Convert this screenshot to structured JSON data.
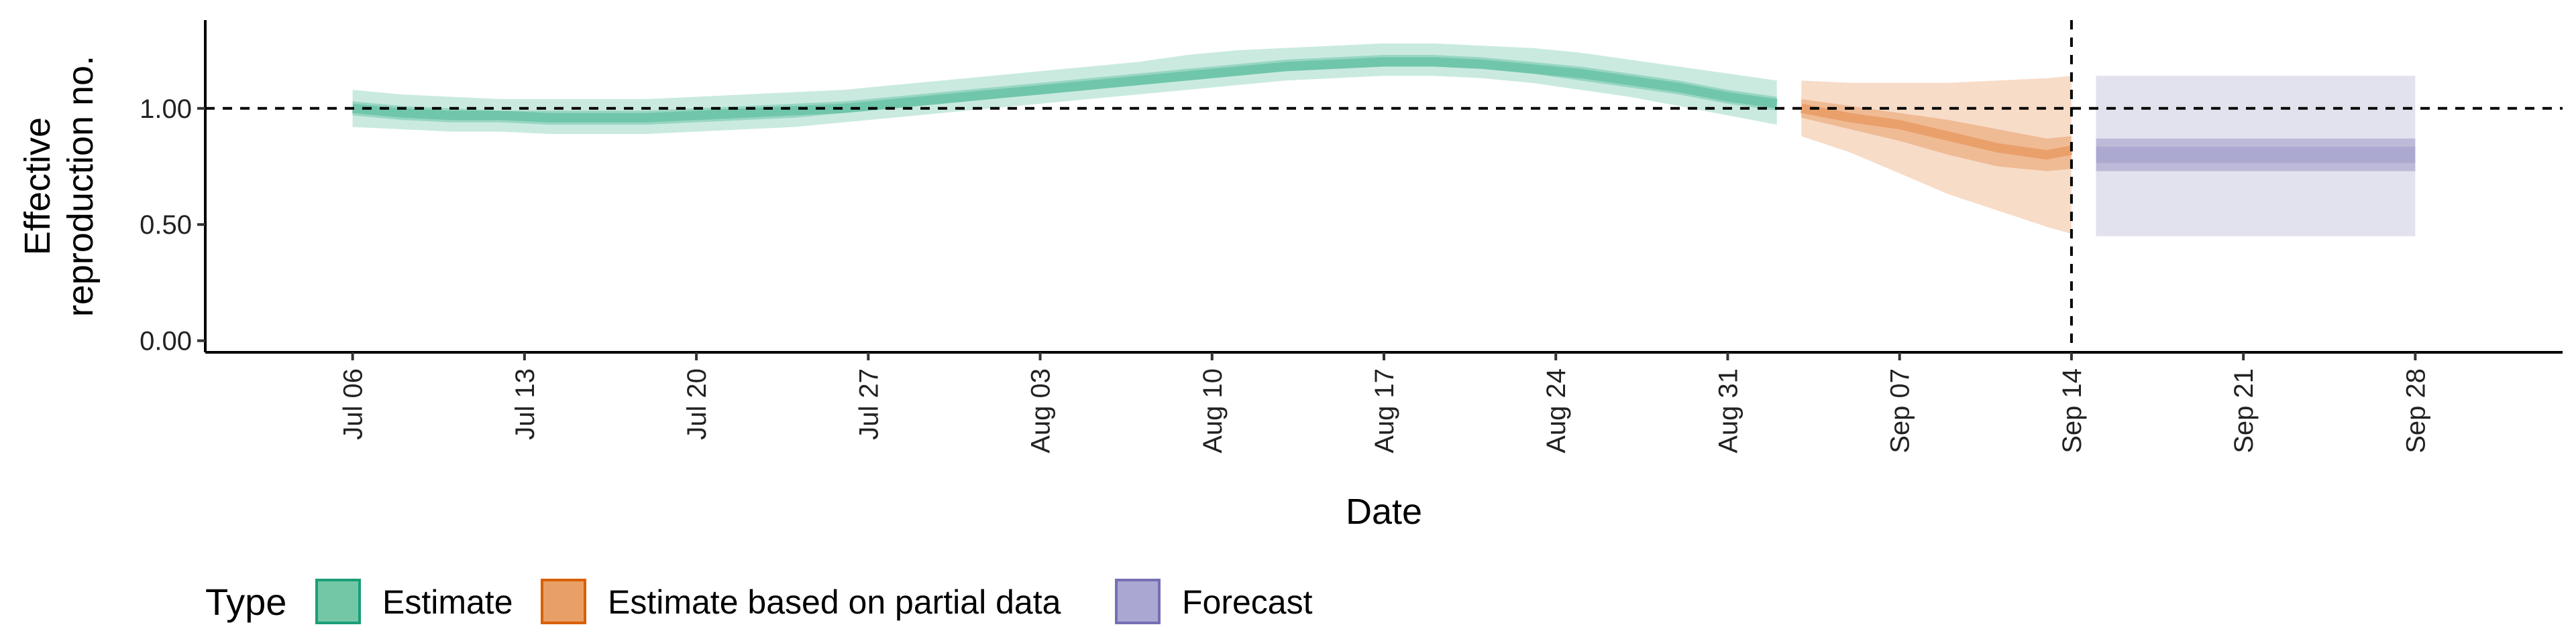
{
  "chart_data": {
    "type": "area",
    "title": "",
    "xlabel": "Date",
    "ylabel": [
      "Effective",
      "reproduction no."
    ],
    "xlim": [
      "2020-06-30",
      "2020-10-04"
    ],
    "ylim": [
      -0.05,
      1.38
    ],
    "y_ticks": [
      0.0,
      0.5,
      1.0
    ],
    "y_tick_labels": [
      "0.00",
      "0.50",
      "1.00"
    ],
    "x_ticks": [
      "2020-07-06",
      "2020-07-13",
      "2020-07-20",
      "2020-07-27",
      "2020-08-03",
      "2020-08-10",
      "2020-08-17",
      "2020-08-24",
      "2020-08-31",
      "2020-09-07",
      "2020-09-14",
      "2020-09-21",
      "2020-09-28"
    ],
    "x_tick_labels": [
      "Jul 06",
      "Jul 13",
      "Jul 20",
      "Jul 27",
      "Aug 03",
      "Aug 10",
      "Aug 17",
      "Aug 24",
      "Aug 31",
      "Sep 07",
      "Sep 14",
      "Sep 21",
      "Sep 28"
    ],
    "reference_lines": {
      "hline_y": 1.0,
      "vline_x": "2020-09-14",
      "style": "dashed"
    },
    "grid": false,
    "legend": {
      "title": "Type",
      "position": "bottom-left",
      "entries": [
        "Estimate",
        "Estimate based on partial data",
        "Forecast"
      ]
    },
    "series": [
      {
        "name": "Estimate",
        "color": "#1b9e77",
        "fill": "#66c2a5",
        "x": [
          "2020-07-06",
          "2020-07-08",
          "2020-07-10",
          "2020-07-12",
          "2020-07-14",
          "2020-07-16",
          "2020-07-18",
          "2020-07-20",
          "2020-07-22",
          "2020-07-24",
          "2020-07-26",
          "2020-07-28",
          "2020-07-30",
          "2020-08-01",
          "2020-08-03",
          "2020-08-05",
          "2020-08-07",
          "2020-08-09",
          "2020-08-11",
          "2020-08-13",
          "2020-08-15",
          "2020-08-17",
          "2020-08-19",
          "2020-08-21",
          "2020-08-23",
          "2020-08-25",
          "2020-08-27",
          "2020-08-29",
          "2020-08-31",
          "2020-09-02"
        ],
        "lower_90": [
          0.92,
          0.91,
          0.9,
          0.9,
          0.89,
          0.89,
          0.89,
          0.9,
          0.91,
          0.92,
          0.94,
          0.96,
          0.98,
          1.0,
          1.02,
          1.04,
          1.06,
          1.08,
          1.1,
          1.12,
          1.13,
          1.14,
          1.14,
          1.13,
          1.11,
          1.08,
          1.05,
          1.01,
          0.97,
          0.93
        ],
        "lower_50": [
          0.97,
          0.95,
          0.94,
          0.94,
          0.93,
          0.93,
          0.93,
          0.94,
          0.95,
          0.96,
          0.98,
          1.0,
          1.02,
          1.04,
          1.06,
          1.08,
          1.1,
          1.12,
          1.14,
          1.16,
          1.17,
          1.18,
          1.18,
          1.17,
          1.15,
          1.12,
          1.09,
          1.06,
          1.02,
          0.99
        ],
        "median": [
          1.0,
          0.98,
          0.97,
          0.97,
          0.96,
          0.96,
          0.96,
          0.97,
          0.98,
          0.99,
          1.0,
          1.02,
          1.04,
          1.06,
          1.08,
          1.1,
          1.12,
          1.14,
          1.16,
          1.18,
          1.19,
          1.2,
          1.2,
          1.19,
          1.17,
          1.15,
          1.12,
          1.09,
          1.05,
          1.02
        ],
        "upper_50": [
          1.03,
          1.01,
          1.0,
          0.99,
          0.99,
          0.99,
          0.99,
          1.0,
          1.01,
          1.02,
          1.03,
          1.05,
          1.07,
          1.09,
          1.11,
          1.13,
          1.15,
          1.17,
          1.19,
          1.21,
          1.22,
          1.23,
          1.23,
          1.22,
          1.2,
          1.18,
          1.15,
          1.12,
          1.08,
          1.05
        ],
        "upper_90": [
          1.08,
          1.06,
          1.05,
          1.04,
          1.04,
          1.04,
          1.04,
          1.05,
          1.06,
          1.07,
          1.08,
          1.1,
          1.12,
          1.14,
          1.16,
          1.18,
          1.2,
          1.23,
          1.25,
          1.26,
          1.27,
          1.28,
          1.28,
          1.27,
          1.26,
          1.24,
          1.21,
          1.18,
          1.15,
          1.12
        ]
      },
      {
        "name": "Estimate based on partial data",
        "color": "#d95f02",
        "fill": "#e89a60",
        "x": [
          "2020-09-03",
          "2020-09-05",
          "2020-09-07",
          "2020-09-09",
          "2020-09-11",
          "2020-09-13",
          "2020-09-14"
        ],
        "lower_90": [
          0.88,
          0.81,
          0.72,
          0.63,
          0.56,
          0.49,
          0.46
        ],
        "lower_50": [
          0.96,
          0.91,
          0.86,
          0.8,
          0.75,
          0.73,
          0.74
        ],
        "median": [
          1.0,
          0.96,
          0.93,
          0.88,
          0.83,
          0.8,
          0.82
        ],
        "upper_50": [
          1.04,
          1.01,
          0.98,
          0.95,
          0.91,
          0.87,
          0.88
        ],
        "upper_90": [
          1.12,
          1.11,
          1.11,
          1.11,
          1.12,
          1.13,
          1.14
        ]
      },
      {
        "name": "Forecast",
        "color": "#7570b3",
        "fill": "#9e9ac8",
        "x": [
          "2020-09-15",
          "2020-09-28"
        ],
        "lower_90": [
          0.45,
          0.45
        ],
        "lower_50": [
          0.73,
          0.73
        ],
        "median": [
          0.8,
          0.8
        ],
        "upper_50": [
          0.87,
          0.87
        ],
        "upper_90": [
          1.14,
          1.14
        ]
      }
    ]
  }
}
